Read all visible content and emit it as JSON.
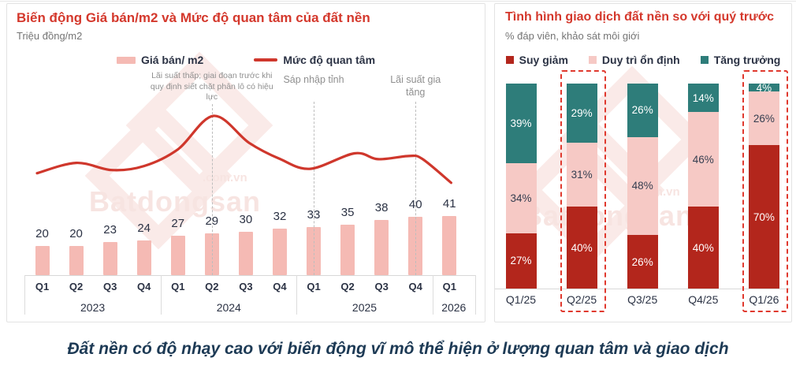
{
  "page": {
    "caption": "Đất nền có độ nhạy cao với biến động vĩ mô thể hiện ở lượng quan tâm và giao dịch",
    "watermark": {
      "brand": "Batdongsan",
      "suffix": ".com.vn"
    }
  },
  "chart_data": [
    {
      "type": "bar+line",
      "title": "Biến động Giá bán/m2 và Mức độ quan tâm của đất nền",
      "subtitle": "Triệu đồng/m2",
      "categories": [
        "Q1",
        "Q2",
        "Q3",
        "Q4",
        "Q1",
        "Q2",
        "Q3",
        "Q4",
        "Q1",
        "Q2",
        "Q3",
        "Q4",
        "Q1"
      ],
      "year_groups": [
        {
          "label": "2023",
          "quarters": 4
        },
        {
          "label": "2024",
          "quarters": 4
        },
        {
          "label": "2025",
          "quarters": 4
        },
        {
          "label": "2026",
          "quarters": 1
        }
      ],
      "bar_series": {
        "name": "Giá bán/ m2",
        "color": "#f5bab4",
        "values": [
          20,
          20,
          23,
          24,
          27,
          29,
          30,
          32,
          33,
          35,
          38,
          40,
          41
        ]
      },
      "line_series": {
        "name": "Mức độ quan tâm",
        "color": "#cf372c",
        "scale": "relative 0-100",
        "points": [
          [
            -0.15,
            64
          ],
          [
            1,
            70.5
          ],
          [
            2.05,
            66
          ],
          [
            3,
            68.5
          ],
          [
            4,
            79
          ],
          [
            5.05,
            100
          ],
          [
            6.1,
            83
          ],
          [
            7,
            73
          ],
          [
            7.9,
            66.8
          ],
          [
            9.2,
            76.5
          ],
          [
            9.9,
            72.8
          ],
          [
            10.8,
            74.8
          ],
          [
            11.2,
            73
          ],
          [
            12.05,
            58
          ]
        ]
      },
      "annotations": [
        {
          "text": "Lãi suất thấp; giai đoạn trước khi quy định siết chặt phân lô có hiệu lực",
          "quarter_index": 5
        },
        {
          "text": "Sáp nhập tỉnh",
          "quarter_index": 8
        },
        {
          "text": "Lãi suất gia tăng",
          "quarter_index": 11
        }
      ]
    },
    {
      "type": "stacked-bar",
      "title": "Tình hình giao dịch đất nền so với quý trước",
      "subtitle": "% đáp viên, khảo sát môi giới",
      "categories": [
        "Q1/25",
        "Q2/25",
        "Q3/25",
        "Q4/25",
        "Q1/26"
      ],
      "ylim": [
        0,
        100
      ],
      "series": [
        {
          "name": "Suy giảm",
          "color": "#b3261c",
          "label_color": "#ffffff",
          "values": [
            27,
            40,
            26,
            40,
            70
          ]
        },
        {
          "name": "Duy trì ổn định",
          "color": "#f6c9c5",
          "label_color": "#353e50",
          "values": [
            34,
            31,
            48,
            46,
            26
          ]
        },
        {
          "name": "Tăng trưởng",
          "color": "#2e7d7a",
          "label_color": "#ffffff",
          "values": [
            39,
            29,
            26,
            14,
            4
          ]
        }
      ],
      "highlighted_categories": [
        "Q2/25",
        "Q1/26"
      ]
    }
  ]
}
